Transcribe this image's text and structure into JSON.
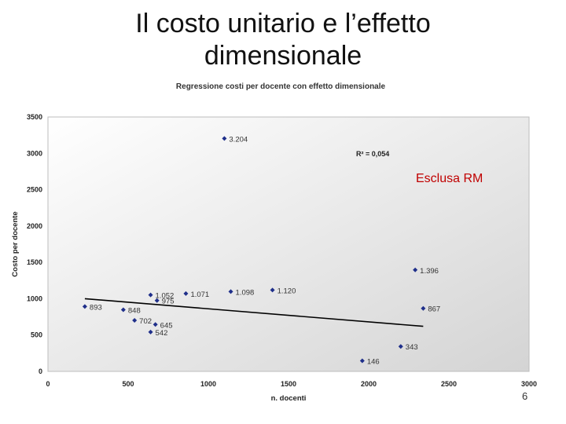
{
  "slide": {
    "title_line1": "Il costo unitario e l’effetto",
    "title_line2": "dimensionale",
    "page_number": "6"
  },
  "chart_data": {
    "type": "scatter",
    "title": "Regressione costi per docente con effetto dimensionale",
    "xlabel": "n. docenti",
    "ylabel": "Costo per docente",
    "xlim": [
      0,
      3000
    ],
    "ylim": [
      0,
      3500
    ],
    "xticks": [
      0,
      500,
      1000,
      1500,
      2000,
      2500,
      3000
    ],
    "yticks": [
      0,
      500,
      1000,
      1500,
      2000,
      2500,
      3000,
      3500
    ],
    "grid": false,
    "points": [
      {
        "x": 230,
        "y": 893,
        "label": "893"
      },
      {
        "x": 470,
        "y": 848,
        "label": "848"
      },
      {
        "x": 540,
        "y": 702,
        "label": "702"
      },
      {
        "x": 640,
        "y": 542,
        "label": "542"
      },
      {
        "x": 670,
        "y": 645,
        "label": "645"
      },
      {
        "x": 640,
        "y": 1052,
        "label": "1.052"
      },
      {
        "x": 680,
        "y": 975,
        "label": "975"
      },
      {
        "x": 860,
        "y": 1071,
        "label": "1.071"
      },
      {
        "x": 1140,
        "y": 1098,
        "label": "1.098"
      },
      {
        "x": 1400,
        "y": 1120,
        "label": "1.120"
      },
      {
        "x": 1100,
        "y": 3204,
        "label": "3.204"
      },
      {
        "x": 1960,
        "y": 146,
        "label": "146"
      },
      {
        "x": 2200,
        "y": 343,
        "label": "343"
      },
      {
        "x": 2340,
        "y": 867,
        "label": "867"
      },
      {
        "x": 2290,
        "y": 1396,
        "label": "1.396"
      }
    ],
    "trendline": {
      "x": [
        230,
        2340
      ],
      "y": [
        1000,
        620
      ]
    },
    "r2_label": "R² = 0,054",
    "annotation": "Esclusa RM",
    "marker_color": "#1f2f8a",
    "trend_color": "#000000",
    "plot_background": [
      "#ffffff",
      "#d4d4d4"
    ]
  }
}
